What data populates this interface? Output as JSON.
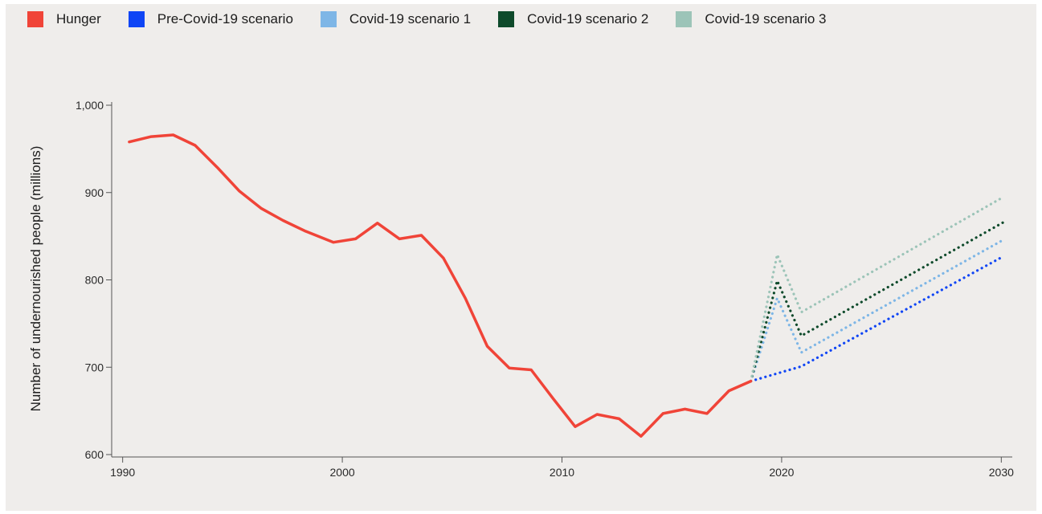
{
  "chart_data": {
    "type": "line",
    "ylabel": "Number of undernourished people (millions)",
    "xlim": [
      1989.5,
      2030.5
    ],
    "ylim": [
      600,
      1000
    ],
    "x_ticks": [
      1990,
      2000,
      2010,
      2020,
      2030
    ],
    "y_ticks": [
      600,
      700,
      800,
      900,
      1000
    ],
    "y_tick_labels": [
      "600",
      "700",
      "800",
      "900",
      "1,000"
    ],
    "grid": false,
    "legend_position": "top-left",
    "series": [
      {
        "name": "Hunger",
        "color": "#f04438",
        "style": "solid",
        "x": [
          1990.3,
          1991.3,
          1992.3,
          1993.3,
          1994.3,
          1995.3,
          1996.3,
          1997.3,
          1998.3,
          1999.6,
          2000.6,
          2001.6,
          2002.6,
          2003.6,
          2004.6,
          2005.6,
          2006.6,
          2007.6,
          2008.6,
          2009.6,
          2010.6,
          2011.6,
          2012.6,
          2013.6,
          2014.6,
          2015.6,
          2016.6,
          2017.6,
          2018.6
        ],
        "y": [
          958,
          964,
          966,
          954,
          929,
          902,
          882,
          868,
          856,
          843,
          847,
          865,
          847,
          851,
          825,
          779,
          724,
          699,
          697,
          664,
          632,
          646,
          641,
          621,
          647,
          652,
          647,
          673,
          684
        ]
      },
      {
        "name": "Pre-Covid-19 scenario",
        "color": "#0f45f5",
        "style": "dotted",
        "x": [
          2018.6,
          2020.9,
          2030.1
        ],
        "y": [
          684,
          701,
          827
        ]
      },
      {
        "name": "Covid-19 scenario 1",
        "color": "#7eb6e6",
        "style": "dotted",
        "x": [
          2018.6,
          2019.8,
          2020.9,
          2030.1
        ],
        "y": [
          684,
          779,
          717,
          846
        ]
      },
      {
        "name": "Covid-19 scenario 2",
        "color": "#0e4a2b",
        "style": "dotted",
        "x": [
          2018.6,
          2019.8,
          2020.9,
          2030.1
        ],
        "y": [
          684,
          799,
          736,
          866
        ]
      },
      {
        "name": "Covid-19 scenario 3",
        "color": "#9cc4b8",
        "style": "dotted",
        "x": [
          2018.6,
          2019.8,
          2020.9,
          2030.1
        ],
        "y": [
          684,
          829,
          763,
          895
        ]
      }
    ]
  }
}
